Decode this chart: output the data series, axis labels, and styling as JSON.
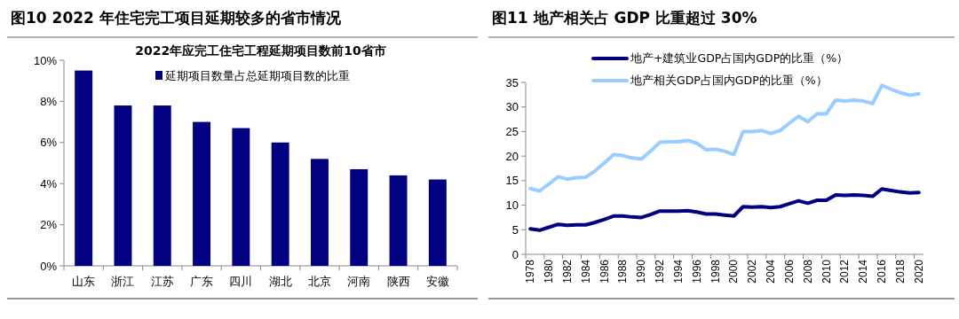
{
  "chart_data": [
    {
      "type": "bar",
      "title": "图10 2022 年住宅完工项目延期较多的省市情况",
      "subtitle": "2022年应完工住宅工程延期项目数前10省市",
      "categories": [
        "山东",
        "浙江",
        "江苏",
        "广东",
        "四川",
        "湖北",
        "北京",
        "河南",
        "陕西",
        "安徽"
      ],
      "series": [
        {
          "name": "延期项目数量占总延期项目数的比重",
          "color": "#000080",
          "values": [
            9.5,
            7.8,
            7.8,
            7.0,
            6.7,
            6.0,
            5.2,
            4.7,
            4.4,
            4.2
          ]
        }
      ],
      "ylim": [
        0,
        10
      ],
      "yticks": [
        {
          "value": 0,
          "label": "0%"
        },
        {
          "value": 2,
          "label": "2%"
        },
        {
          "value": 4,
          "label": "4%"
        },
        {
          "value": 6,
          "label": "6%"
        },
        {
          "value": 8,
          "label": "8%"
        },
        {
          "value": 10,
          "label": "10%"
        }
      ],
      "legend": "top",
      "grid": false
    },
    {
      "type": "line",
      "title": "图11 地产相关占 GDP 比重超过 30%",
      "categories": [
        "1978",
        null,
        "1980",
        null,
        "1982",
        null,
        "1984",
        null,
        "1986",
        null,
        "1988",
        null,
        "1990",
        null,
        "1992",
        null,
        "1994",
        null,
        "1996",
        null,
        "1998",
        null,
        "2000",
        null,
        "2002",
        null,
        "2004",
        null,
        "2006",
        null,
        "2008",
        null,
        "2010",
        null,
        "2012",
        null,
        "2014",
        null,
        "2016",
        null,
        "2018",
        null,
        "2020"
      ],
      "series": [
        {
          "name": "地产+建筑业GDP占国内GDP的比重（%）",
          "color": "#000080",
          "values": [
            5.2,
            4.9,
            5.5,
            6.1,
            5.9,
            6.0,
            6.0,
            6.5,
            7.1,
            7.8,
            7.8,
            7.6,
            7.5,
            8.1,
            8.8,
            8.8,
            8.8,
            8.9,
            8.6,
            8.2,
            8.2,
            8.0,
            7.8,
            9.7,
            9.6,
            9.7,
            9.5,
            9.7,
            10.3,
            10.9,
            10.4,
            11.0,
            11.0,
            12.1,
            12.0,
            12.1,
            12.0,
            11.8,
            13.3,
            13.0,
            12.7,
            12.5,
            12.6
          ]
        },
        {
          "name": "地产相关GDP占国内GDP的比重（%）",
          "color": "#99ccff",
          "values": [
            13.4,
            12.9,
            14.3,
            15.8,
            15.3,
            15.6,
            15.7,
            17.0,
            18.6,
            20.3,
            20.1,
            19.6,
            19.4,
            21.0,
            22.8,
            22.9,
            22.9,
            23.2,
            22.6,
            21.3,
            21.4,
            21.0,
            20.3,
            25.0,
            25.0,
            25.2,
            24.6,
            25.2,
            26.7,
            28.1,
            27.0,
            28.6,
            28.6,
            31.4,
            31.2,
            31.4,
            31.2,
            30.7,
            34.4,
            33.6,
            32.9,
            32.4,
            32.7
          ]
        }
      ],
      "ylim": [
        0,
        35
      ],
      "yticks": [
        0,
        5,
        10,
        15,
        20,
        25,
        30,
        35
      ],
      "legend": "top",
      "grid": false,
      "marker": "none",
      "line_style": "solid"
    }
  ]
}
